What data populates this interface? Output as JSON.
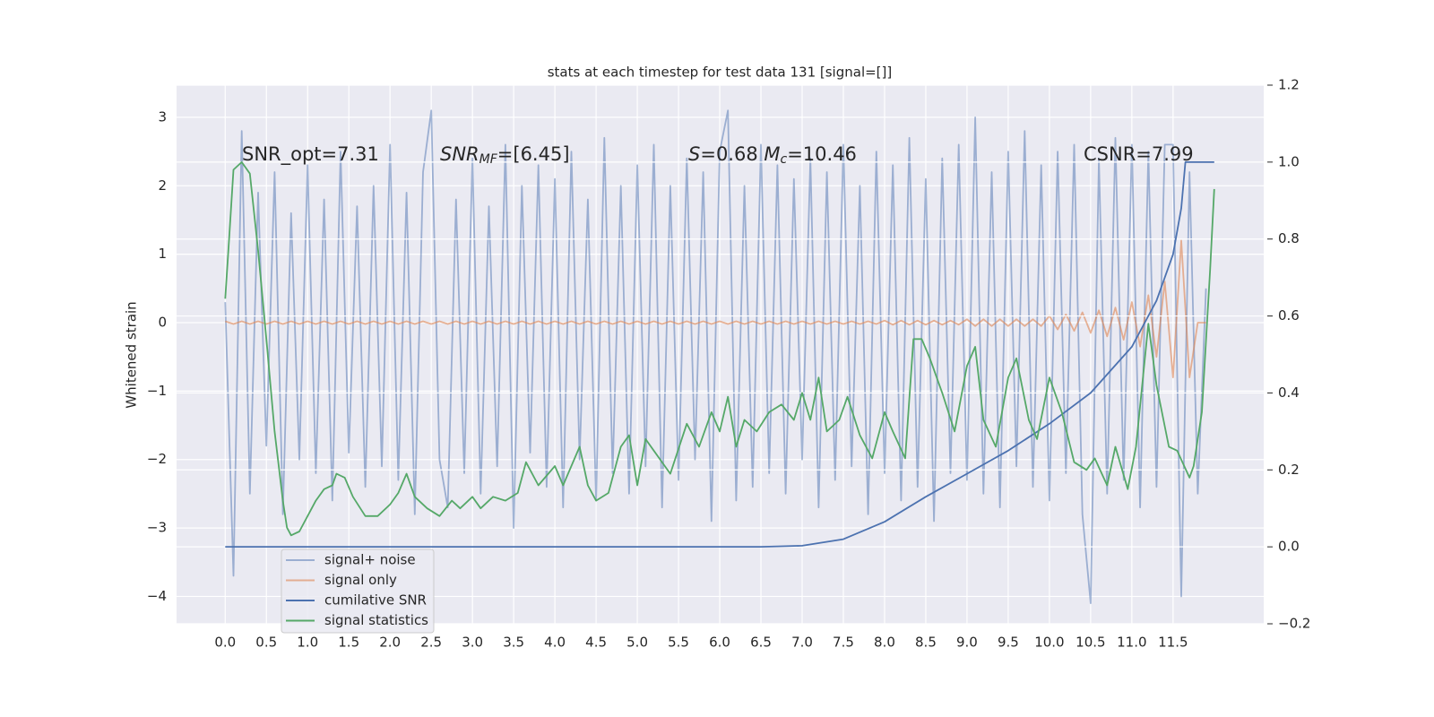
{
  "chart_data": {
    "type": "line",
    "title": "stats at each timestep for test data 131 [signal=[]]",
    "ylabel": "Whitened strain",
    "xlim": [
      -0.59,
      12.6
    ],
    "ylim": [
      -4.4,
      3.47
    ],
    "y2lim": [
      -0.2,
      1.2
    ],
    "xticks": [
      {
        "value": 0,
        "label": "0.0"
      },
      0.5,
      {
        "value": 1,
        "label": "1.0"
      },
      1.5,
      {
        "value": 2,
        "label": "2.0"
      },
      2.5,
      {
        "value": 3,
        "label": "3.0"
      },
      3.5,
      {
        "value": 4,
        "label": "4.0"
      },
      4.5,
      {
        "value": 5,
        "label": "5.0"
      },
      5.5,
      {
        "value": 6,
        "label": "6.0"
      },
      6.5,
      {
        "value": 7,
        "label": "7.0"
      },
      7.5,
      {
        "value": 8,
        "label": "8.0"
      },
      8.5,
      {
        "value": 9,
        "label": "9.0"
      },
      9.5,
      {
        "value": 10,
        "label": "10.0"
      },
      10.5,
      {
        "value": 11,
        "label": "11.0"
      },
      11.5
    ],
    "yticks": [
      {
        "value": -4,
        "label": "−4"
      },
      {
        "value": -3,
        "label": "−3"
      },
      {
        "value": -2,
        "label": "−2"
      },
      {
        "value": -1,
        "label": "−1"
      },
      0,
      1,
      2,
      3
    ],
    "y2ticks": [
      {
        "value": -0.2,
        "label": "−0.2"
      },
      {
        "value": 0,
        "label": "0.0"
      },
      0.2,
      0.4,
      0.6,
      0.8,
      {
        "value": 1,
        "label": "1.0"
      },
      1.2
    ],
    "grid": true,
    "legend": "lower left",
    "annotations": [
      [
        {
          "text": "SNR_opt=7.31",
          "style": "normal"
        }
      ],
      [
        {
          "text": "SNR",
          "style": "italic"
        },
        {
          "text": "MF",
          "style": "sub"
        },
        {
          "text": "=[6.45]",
          "style": "normal"
        }
      ],
      [
        {
          "text": "S",
          "style": "italic"
        },
        {
          "text": "=0.68   ",
          "style": "normal"
        },
        {
          "text": "M",
          "style": "italic"
        },
        {
          "text": "c",
          "style": "sub"
        },
        {
          "text": "=10.46",
          "style": "normal"
        }
      ],
      [
        {
          "text": "CSNR=7.99",
          "style": "normal"
        }
      ]
    ],
    "series": [
      {
        "name": "signal+ noise",
        "color": "#4c72b0",
        "opacity": 0.5,
        "axis": "y",
        "x": [
          0,
          0.1,
          0.2,
          0.3,
          0.4,
          0.5,
          0.6,
          0.7,
          0.8,
          0.9,
          1,
          1.1,
          1.2,
          1.3,
          1.4,
          1.5,
          1.6,
          1.7,
          1.8,
          1.9,
          2,
          2.1,
          2.2,
          2.3,
          2.4,
          2.5,
          2.6,
          2.7,
          2.8,
          2.9,
          3,
          3.1,
          3.2,
          3.3,
          3.4,
          3.5,
          3.6,
          3.7,
          3.8,
          3.9,
          4,
          4.1,
          4.2,
          4.3,
          4.4,
          4.5,
          4.6,
          4.7,
          4.8,
          4.9,
          5,
          5.1,
          5.2,
          5.3,
          5.4,
          5.5,
          5.6,
          5.7,
          5.8,
          5.9,
          6,
          6.1,
          6.2,
          6.3,
          6.4,
          6.5,
          6.6,
          6.7,
          6.8,
          6.9,
          7,
          7.1,
          7.2,
          7.3,
          7.4,
          7.5,
          7.6,
          7.7,
          7.8,
          7.9,
          8,
          8.1,
          8.2,
          8.3,
          8.4,
          8.5,
          8.6,
          8.7,
          8.8,
          8.9,
          9,
          9.1,
          9.2,
          9.3,
          9.4,
          9.5,
          9.6,
          9.7,
          9.8,
          9.9,
          10,
          10.1,
          10.2,
          10.3,
          10.4,
          10.5,
          10.6,
          10.7,
          10.8,
          10.9,
          11,
          11.1,
          11.2,
          11.3,
          11.4,
          11.5,
          11.6,
          11.7,
          11.8,
          11.9
        ],
        "values": [
          0.3,
          -3.7,
          2.8,
          -2.5,
          1.9,
          -1.8,
          2.2,
          -2.8,
          1.6,
          -2.0,
          2.3,
          -2.2,
          1.8,
          -2.6,
          2.5,
          -1.9,
          1.7,
          -2.4,
          2.0,
          -2.1,
          2.6,
          -2.3,
          1.9,
          -2.8,
          2.2,
          3.1,
          -2.0,
          -2.7,
          1.8,
          -2.2,
          2.4,
          -2.5,
          1.7,
          -2.1,
          2.6,
          -3.0,
          2.0,
          -1.9,
          2.3,
          -2.4,
          2.1,
          -2.7,
          2.5,
          -2.0,
          1.8,
          -2.6,
          2.7,
          -2.2,
          2.0,
          -2.5,
          2.3,
          -2.1,
          2.6,
          -2.7,
          2.0,
          -2.3,
          2.4,
          -2.0,
          2.2,
          -2.9,
          2.5,
          3.1,
          -2.6,
          2.0,
          -2.4,
          2.6,
          -2.2,
          2.3,
          -2.5,
          2.1,
          -2.0,
          2.4,
          -2.7,
          2.2,
          -2.3,
          2.6,
          -2.1,
          2.0,
          -2.8,
          2.5,
          -2.2,
          2.3,
          -2.6,
          2.7,
          -2.4,
          2.1,
          -2.9,
          2.4,
          -2.2,
          2.6,
          -2.3,
          3.0,
          -2.5,
          2.2,
          -2.7,
          2.5,
          -2.1,
          2.8,
          -2.4,
          2.3,
          -2.6,
          2.5,
          -2.2,
          2.6,
          -2.8,
          -4.1,
          2.4,
          -2.5,
          2.7,
          -2.3,
          2.6,
          -2.7,
          2.5,
          -2.4,
          2.6,
          2.6,
          -4.0,
          2.2,
          -2.5,
          0.5
        ]
      },
      {
        "name": "signal only",
        "color": "#dd8452",
        "opacity": 0.6,
        "axis": "y",
        "x": [
          0,
          0.1,
          0.2,
          0.3,
          0.4,
          0.5,
          0.6,
          0.7,
          0.8,
          0.9,
          1,
          1.1,
          1.2,
          1.3,
          1.4,
          1.5,
          1.6,
          1.7,
          1.8,
          1.9,
          2,
          2.1,
          2.2,
          2.3,
          2.4,
          2.5,
          2.6,
          2.7,
          2.8,
          2.9,
          3,
          3.1,
          3.2,
          3.3,
          3.4,
          3.5,
          3.6,
          3.7,
          3.8,
          3.9,
          4,
          4.1,
          4.2,
          4.3,
          4.4,
          4.5,
          4.6,
          4.7,
          4.8,
          4.9,
          5,
          5.1,
          5.2,
          5.3,
          5.4,
          5.5,
          5.6,
          5.7,
          5.8,
          5.9,
          6,
          6.1,
          6.2,
          6.3,
          6.4,
          6.5,
          6.6,
          6.7,
          6.8,
          6.9,
          7,
          7.1,
          7.2,
          7.3,
          7.4,
          7.5,
          7.6,
          7.7,
          7.8,
          7.9,
          8,
          8.1,
          8.2,
          8.3,
          8.4,
          8.5,
          8.6,
          8.7,
          8.8,
          8.9,
          9,
          9.1,
          9.2,
          9.3,
          9.4,
          9.5,
          9.6,
          9.7,
          9.8,
          9.9,
          10,
          10.1,
          10.2,
          10.3,
          10.4,
          10.5,
          10.6,
          10.7,
          10.8,
          10.9,
          11,
          11.1,
          11.2,
          11.3,
          11.4,
          11.5,
          11.6,
          11.7,
          11.8,
          11.9
        ],
        "values": [
          0.02,
          -0.02,
          0.02,
          -0.02,
          0.02,
          -0.02,
          0.02,
          -0.02,
          0.02,
          -0.02,
          0.02,
          -0.02,
          0.02,
          -0.02,
          0.02,
          -0.02,
          0.02,
          -0.02,
          0.02,
          -0.02,
          0.02,
          -0.02,
          0.02,
          -0.02,
          0.02,
          -0.02,
          0.02,
          -0.02,
          0.02,
          -0.02,
          0.02,
          -0.02,
          0.02,
          -0.02,
          0.02,
          -0.02,
          0.02,
          -0.02,
          0.02,
          -0.02,
          0.02,
          -0.02,
          0.02,
          -0.02,
          0.02,
          -0.02,
          0.02,
          -0.02,
          0.02,
          -0.02,
          0.02,
          -0.02,
          0.02,
          -0.02,
          0.02,
          -0.02,
          0.02,
          -0.02,
          0.02,
          -0.02,
          0.02,
          -0.02,
          0.02,
          -0.02,
          0.02,
          -0.02,
          0.02,
          -0.02,
          0.02,
          -0.02,
          0.02,
          -0.02,
          0.02,
          -0.02,
          0.02,
          -0.02,
          0.02,
          -0.02,
          0.02,
          -0.02,
          0.03,
          -0.03,
          0.03,
          -0.03,
          0.03,
          -0.03,
          0.03,
          -0.03,
          0.03,
          -0.03,
          0.05,
          -0.05,
          0.05,
          -0.05,
          0.05,
          -0.05,
          0.05,
          -0.05,
          0.05,
          -0.05,
          0.1,
          -0.1,
          0.12,
          -0.12,
          0.15,
          -0.15,
          0.18,
          -0.2,
          0.22,
          -0.25,
          0.3,
          -0.35,
          0.4,
          -0.5,
          0.6,
          -0.8,
          1.2,
          -0.8,
          0,
          0
        ]
      },
      {
        "name": "cumilative SNR",
        "color": "#4c72b0",
        "opacity": 1,
        "axis": "y2",
        "x": [
          0,
          6.5,
          7,
          7.5,
          8,
          8.5,
          9,
          9.5,
          10,
          10.5,
          11,
          11.3,
          11.5,
          11.6,
          11.65,
          11.7,
          12
        ],
        "values": [
          0,
          0,
          0.003,
          0.02,
          0.065,
          0.13,
          0.19,
          0.25,
          0.32,
          0.4,
          0.52,
          0.64,
          0.76,
          0.88,
          1,
          1,
          1
        ]
      },
      {
        "name": "signal statistics",
        "color": "#55a868",
        "opacity": 1,
        "axis": "y2",
        "x": [
          0,
          0.05,
          0.1,
          0.2,
          0.3,
          0.4,
          0.5,
          0.6,
          0.7,
          0.75,
          0.8,
          0.9,
          1,
          1.1,
          1.2,
          1.3,
          1.35,
          1.45,
          1.55,
          1.7,
          1.85,
          2,
          2.1,
          2.2,
          2.3,
          2.45,
          2.6,
          2.75,
          2.85,
          3,
          3.1,
          3.25,
          3.4,
          3.55,
          3.65,
          3.8,
          4,
          4.1,
          4.2,
          4.3,
          4.4,
          4.5,
          4.65,
          4.8,
          4.9,
          5,
          5.1,
          5.2,
          5.4,
          5.6,
          5.75,
          5.9,
          6,
          6.1,
          6.2,
          6.3,
          6.45,
          6.6,
          6.75,
          6.9,
          7,
          7.1,
          7.2,
          7.3,
          7.45,
          7.55,
          7.7,
          7.85,
          8,
          8.1,
          8.25,
          8.35,
          8.45,
          8.55,
          8.7,
          8.85,
          9,
          9.1,
          9.2,
          9.35,
          9.5,
          9.6,
          9.75,
          9.85,
          10,
          10.15,
          10.3,
          10.45,
          10.55,
          10.7,
          10.8,
          10.95,
          11.05,
          11.2,
          11.3,
          11.45,
          11.55,
          11.7,
          11.75,
          11.85,
          11.95,
          12
        ],
        "values": [
          0.645,
          0.81,
          0.98,
          1,
          0.97,
          0.77,
          0.54,
          0.3,
          0.12,
          0.05,
          0.03,
          0.04,
          0.08,
          0.12,
          0.15,
          0.16,
          0.19,
          0.18,
          0.13,
          0.08,
          0.08,
          0.11,
          0.14,
          0.19,
          0.13,
          0.1,
          0.08,
          0.12,
          0.1,
          0.13,
          0.1,
          0.13,
          0.12,
          0.14,
          0.22,
          0.16,
          0.21,
          0.16,
          0.21,
          0.26,
          0.16,
          0.12,
          0.14,
          0.26,
          0.29,
          0.16,
          0.28,
          0.25,
          0.19,
          0.32,
          0.26,
          0.35,
          0.3,
          0.39,
          0.26,
          0.33,
          0.3,
          0.35,
          0.37,
          0.33,
          0.4,
          0.33,
          0.44,
          0.3,
          0.33,
          0.39,
          0.29,
          0.23,
          0.35,
          0.3,
          0.23,
          0.54,
          0.54,
          0.49,
          0.4,
          0.3,
          0.47,
          0.52,
          0.33,
          0.26,
          0.44,
          0.49,
          0.33,
          0.28,
          0.44,
          0.35,
          0.22,
          0.2,
          0.23,
          0.16,
          0.26,
          0.15,
          0.26,
          0.58,
          0.42,
          0.26,
          0.25,
          0.18,
          0.21,
          0.35,
          0.72,
          0.93
        ]
      }
    ]
  }
}
